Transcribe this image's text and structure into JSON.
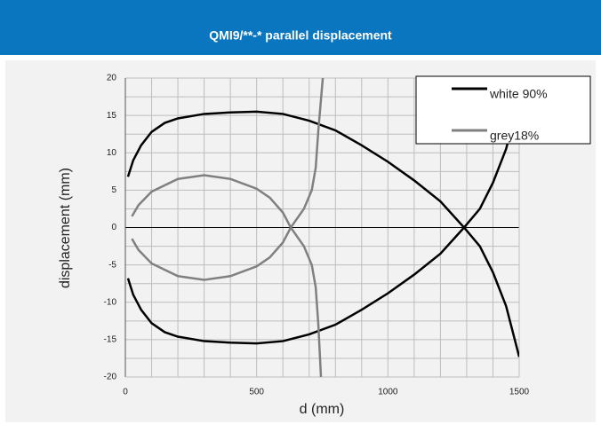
{
  "chart_data": {
    "type": "line",
    "title": "QMI9/**-*  parallel displacement",
    "xlabel": "d (mm)",
    "ylabel": "displacement (mm)",
    "xlim": [
      0,
      1500
    ],
    "xticks": [
      0,
      500,
      1000,
      1500
    ],
    "ylim": [
      -20,
      20
    ],
    "yticks": [
      -20,
      -15,
      -10,
      -5,
      0,
      5,
      10,
      15,
      20
    ],
    "grid": true,
    "legend": "upper right",
    "series": [
      {
        "name": "white 90%",
        "color": "#000000",
        "x": [
          10,
          30,
          60,
          100,
          150,
          200,
          300,
          400,
          500,
          600,
          700,
          800,
          900,
          1000,
          1100,
          1200,
          1290,
          1350,
          1400,
          1450,
          1500,
          null,
          10,
          30,
          60,
          100,
          150,
          200,
          300,
          400,
          500,
          600,
          700,
          800,
          900,
          1000,
          1100,
          1200,
          1290,
          1350,
          1400,
          1450,
          1500
        ],
        "values": [
          6.8,
          9,
          11,
          12.8,
          14,
          14.6,
          15.2,
          15.4,
          15.5,
          15.2,
          14.3,
          13,
          11,
          8.8,
          6.3,
          3.5,
          0,
          -2.5,
          -6,
          -10.5,
          -17.3,
          null,
          -6.8,
          -9,
          -11,
          -12.8,
          -14,
          -14.6,
          -15.2,
          -15.4,
          -15.5,
          -15.2,
          -14.3,
          -13,
          -11,
          -8.8,
          -6.3,
          -3.5,
          0,
          2.5,
          6,
          10.5,
          17.3
        ]
      },
      {
        "name": "grey18%",
        "color": "#808080",
        "x": [
          25,
          50,
          100,
          200,
          300,
          400,
          500,
          550,
          600,
          630,
          680,
          710,
          725,
          735,
          745,
          null,
          25,
          50,
          100,
          200,
          300,
          400,
          500,
          550,
          600,
          630,
          680,
          710,
          725,
          735,
          752
        ],
        "values": [
          1.5,
          3,
          4.8,
          6.5,
          7,
          6.5,
          5.2,
          4,
          2,
          0,
          -2.5,
          -5,
          -8,
          -13,
          -20,
          null,
          -1.5,
          -3,
          -4.8,
          -6.5,
          -7,
          -6.5,
          -5.2,
          -4,
          -2,
          0,
          2.5,
          5,
          8,
          13,
          20
        ]
      }
    ]
  }
}
